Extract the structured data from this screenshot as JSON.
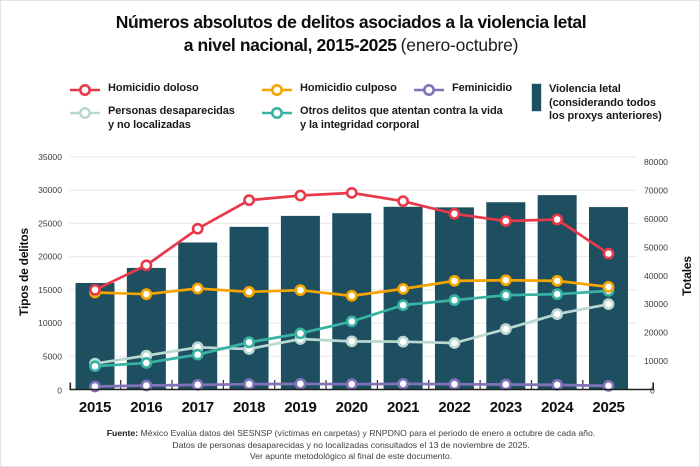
{
  "title": {
    "line1": "Números absolutos de delitos asociados a la violencia letal",
    "line2_bold": "a nivel nacional, 2015-2025",
    "line2_light": "(enero-octubre)"
  },
  "legend": {
    "items": [
      {
        "id": "doloso",
        "label": "Homicidio doloso",
        "color": "#e8394a"
      },
      {
        "id": "culposo",
        "label": "Homicidio culposo",
        "color": "#f6a500"
      },
      {
        "id": "feminicidio",
        "label": "Feminicidio",
        "color": "#8172ba"
      },
      {
        "id": "desaparecidas",
        "label_line1": "Personas desaparecidas",
        "label_line2": "y no localizadas",
        "color": "#bad8d2"
      },
      {
        "id": "otros",
        "label_line1": "Otros delitos que atentan contra la vida",
        "label_line2": "y la integridad corporal",
        "color": "#38b2a2"
      }
    ],
    "bar_item": {
      "label_line1": "Violencia letal",
      "label_line2": "(considerando todos",
      "label_line3": "los proxys anteriores)",
      "color": "#1d4f60",
      "border": "#c9dde2"
    }
  },
  "chart_data": {
    "type": "bar+line",
    "title": "Números absolutos de delitos asociados a la violencia letal a nivel nacional, 2015-2025 (enero-octubre)",
    "categories": [
      "2015",
      "2016",
      "2017",
      "2018",
      "2019",
      "2020",
      "2021",
      "2022",
      "2023",
      "2024",
      "2025"
    ],
    "x_labels": [
      "2015",
      "2016",
      "2017",
      "2018",
      "2019",
      "2020",
      "2021",
      "2022",
      "2023",
      "2024",
      "2025"
    ],
    "bar_series": {
      "id": "violencia-letal",
      "name": "Violencia letal (considerando todos los proxys anteriores)",
      "axis": "right",
      "color": "#1d4f60",
      "values": [
        37450,
        42750,
        51700,
        57200,
        61050,
        62000,
        64250,
        64050,
        65850,
        68350,
        64150
      ]
    },
    "line_series": [
      {
        "id": "desaparecidas",
        "name": "Personas desaparecidas y no localizadas",
        "axis": "left",
        "color": "#bad8d2",
        "values": [
          3900,
          5100,
          6350,
          6100,
          7600,
          7250,
          7200,
          7000,
          9100,
          11350,
          12850
        ]
      },
      {
        "id": "otros-delitos",
        "name": "Otros delitos que atentan contra la vida y la integridad corporal",
        "axis": "left",
        "color": "#38b2a2",
        "values": [
          3500,
          4000,
          5250,
          7100,
          8450,
          10250,
          12700,
          13450,
          14200,
          14350,
          14850
        ]
      },
      {
        "id": "homicidio-culposo",
        "name": "Homicidio culposo",
        "axis": "left",
        "color": "#f6a500",
        "values": [
          14600,
          14350,
          15200,
          14700,
          14950,
          14100,
          15150,
          16350,
          16450,
          16350,
          15450
        ]
      },
      {
        "id": "feminicidio",
        "name": "Feminicidio",
        "axis": "left",
        "color": "#8172ba",
        "values": [
          450,
          600,
          700,
          800,
          850,
          800,
          850,
          800,
          750,
          700,
          550
        ]
      },
      {
        "id": "homicidio-doloso",
        "name": "Homicidio doloso",
        "axis": "left",
        "color": "#e8394a",
        "values": [
          15000,
          18700,
          24200,
          28500,
          29200,
          29600,
          28350,
          26450,
          25350,
          25600,
          20450
        ]
      }
    ],
    "left_axis": {
      "label": "Tipos de delitos",
      "min": 0,
      "max": 35000,
      "tick_step": 5000
    },
    "right_axis": {
      "label": "Totales",
      "min": 0,
      "max": 80000,
      "tick_step": 10000
    },
    "grid": true,
    "legend_position": "top"
  },
  "footer": {
    "source_label": "Fuente:",
    "line1": " México Evalúa datos del SESNSP (víctimas en carpetas) y RNPDNO para el periodo de enero a octubre de cada año.",
    "line2": "Datos de personas desaparecidas y no localizadas consultados el 13 de noviembre de 2025.",
    "line3": "Ver apunte metodológico al final de este documento."
  }
}
